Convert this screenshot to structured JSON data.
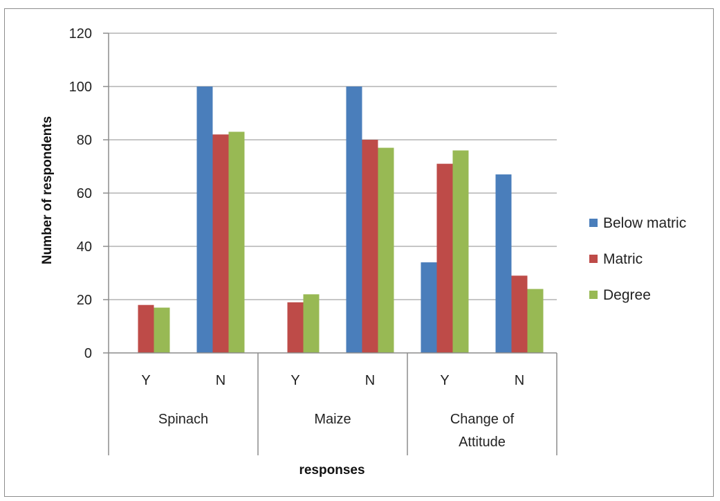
{
  "chart_data": {
    "type": "bar",
    "ylabel": "Number of respondents",
    "xlabel": "responses",
    "ylim": [
      0,
      120
    ],
    "yticks": [
      0,
      20,
      40,
      60,
      80,
      100,
      120
    ],
    "grid": true,
    "legend_position": "right",
    "groups": [
      {
        "label": "Spinach",
        "categories": [
          "Y",
          "N"
        ]
      },
      {
        "label": "Maize",
        "categories": [
          "Y",
          "N"
        ]
      },
      {
        "label": "Change of Attitude",
        "label_lines": [
          "Change of",
          "Attitude"
        ],
        "categories": [
          "Y",
          "N"
        ]
      }
    ],
    "categories": [
      "Spinach Y",
      "Spinach N",
      "Maize Y",
      "Maize N",
      "Change of Attitude Y",
      "Change of Attitude N"
    ],
    "series": [
      {
        "name": "Below matric",
        "color": "#4a7ebb",
        "values": [
          0,
          100,
          0,
          100,
          34,
          67
        ]
      },
      {
        "name": "Matric",
        "color": "#be4b48",
        "values": [
          18,
          82,
          19,
          80,
          71,
          29
        ]
      },
      {
        "name": "Degree",
        "color": "#98b954",
        "values": [
          17,
          83,
          22,
          77,
          76,
          24
        ]
      }
    ]
  }
}
